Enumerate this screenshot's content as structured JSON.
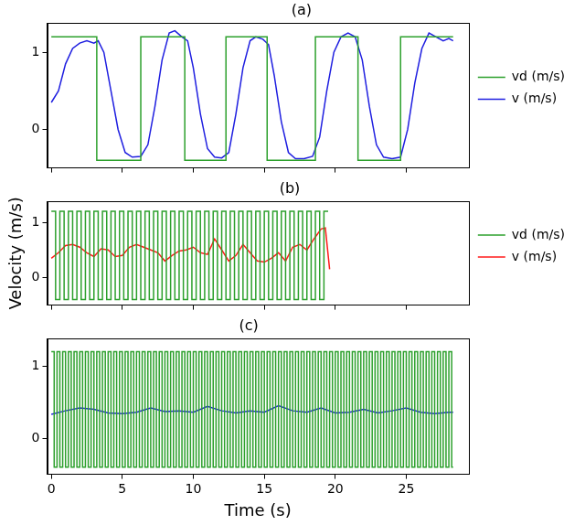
{
  "chart_data": [
    {
      "type": "line",
      "title": "(a)",
      "xlim": [
        -0.3,
        29.4
      ],
      "xticks": [
        0,
        5,
        10,
        15,
        20,
        25
      ],
      "ylim": [
        -0.5,
        1.38
      ],
      "yticks": [
        0,
        1
      ],
      "grid": false,
      "legend": "right",
      "tick_labels": "y",
      "series": [
        {
          "name": "vd (m/s)",
          "color": "#2ca02c",
          "line_style": "steps",
          "x": [
            0,
            3.2,
            6.3,
            9.4,
            12.3,
            15.2,
            18.6,
            21.6,
            24.6,
            28.3
          ],
          "values": [
            1.2,
            -0.4,
            1.2,
            -0.4,
            1.2,
            -0.4,
            1.2,
            -0.4,
            1.2,
            1.2
          ]
        },
        {
          "name": "v (m/s)",
          "color": "#1f1fe0",
          "line_style": "solid",
          "x": [
            0,
            0.5,
            1,
            1.5,
            2,
            2.5,
            3,
            3.3,
            3.7,
            4.2,
            4.7,
            5.2,
            5.7,
            6.3,
            6.8,
            7.3,
            7.8,
            8.3,
            8.7,
            9.2,
            9.6,
            10,
            10.5,
            11,
            11.5,
            12,
            12.5,
            13,
            13.5,
            14,
            14.4,
            14.9,
            15.3,
            15.7,
            16.2,
            16.7,
            17.2,
            17.8,
            18.4,
            18.9,
            19.4,
            19.9,
            20.4,
            20.9,
            21.4,
            21.9,
            22.4,
            22.9,
            23.4,
            24,
            24.6,
            25.1,
            25.6,
            26.1,
            26.6,
            27.1,
            27.6,
            28,
            28.3
          ],
          "values": [
            0.35,
            0.5,
            0.85,
            1.05,
            1.12,
            1.15,
            1.12,
            1.15,
            1.0,
            0.5,
            0.0,
            -0.3,
            -0.36,
            -0.35,
            -0.2,
            0.3,
            0.9,
            1.25,
            1.28,
            1.2,
            1.15,
            0.8,
            0.2,
            -0.25,
            -0.36,
            -0.37,
            -0.3,
            0.2,
            0.8,
            1.15,
            1.2,
            1.17,
            1.1,
            0.7,
            0.1,
            -0.3,
            -0.38,
            -0.38,
            -0.35,
            -0.1,
            0.5,
            1.0,
            1.2,
            1.25,
            1.2,
            0.9,
            0.3,
            -0.2,
            -0.36,
            -0.38,
            -0.36,
            0.0,
            0.6,
            1.05,
            1.25,
            1.2,
            1.15,
            1.18,
            1.15
          ]
        }
      ]
    },
    {
      "type": "line",
      "title": "(b)",
      "ylabel": "Velocity (m/s)",
      "xlim": [
        -0.3,
        29.4
      ],
      "xticks": [
        0,
        5,
        10,
        15,
        20,
        25
      ],
      "ylim": [
        -0.5,
        1.38
      ],
      "yticks": [
        0,
        1
      ],
      "grid": false,
      "legend": "right",
      "tick_labels": "y",
      "series": [
        {
          "name": "vd (m/s)",
          "color": "#2ca02c",
          "line_style": "steps",
          "x": [
            0,
            0.3,
            0.6,
            0.9,
            1.2,
            1.5,
            1.8,
            2.1,
            2.4,
            2.7,
            3,
            3.3,
            3.6,
            3.9,
            4.2,
            4.5,
            4.8,
            5.1,
            5.4,
            5.7,
            6,
            6.3,
            6.6,
            6.9,
            7.2,
            7.5,
            7.8,
            8.1,
            8.4,
            8.7,
            9,
            9.3,
            9.6,
            9.9,
            10.2,
            10.5,
            10.8,
            11.1,
            11.4,
            11.7,
            12,
            12.3,
            12.6,
            12.9,
            13.2,
            13.5,
            13.8,
            14.1,
            14.4,
            14.7,
            15,
            15.3,
            15.6,
            15.9,
            16.2,
            16.5,
            16.8,
            17.1,
            17.4,
            17.7,
            18,
            18.3,
            18.6,
            18.9,
            19.2,
            19.5
          ],
          "values": [
            1.2,
            -0.4,
            1.2,
            -0.4,
            1.2,
            -0.4,
            1.2,
            -0.4,
            1.2,
            -0.4,
            1.2,
            -0.4,
            1.2,
            -0.4,
            1.2,
            -0.4,
            1.2,
            -0.4,
            1.2,
            -0.4,
            1.2,
            -0.4,
            1.2,
            -0.4,
            1.2,
            -0.4,
            1.2,
            -0.4,
            1.2,
            -0.4,
            1.2,
            -0.4,
            1.2,
            -0.4,
            1.2,
            -0.4,
            1.2,
            -0.4,
            1.2,
            -0.4,
            1.2,
            -0.4,
            1.2,
            -0.4,
            1.2,
            -0.4,
            1.2,
            -0.4,
            1.2,
            -0.4,
            1.2,
            -0.4,
            1.2,
            -0.4,
            1.2,
            -0.4,
            1.2,
            -0.4,
            1.2,
            -0.4,
            1.2,
            -0.4,
            1.2,
            -0.4,
            1.2,
            1.2
          ]
        },
        {
          "name": "v (m/s)",
          "color": "#ff1a1a",
          "line_style": "solid",
          "x": [
            0,
            0.5,
            1,
            1.5,
            2,
            2.5,
            3,
            3.5,
            4,
            4.5,
            5,
            5.5,
            6,
            6.5,
            7,
            7.5,
            8,
            8.5,
            9,
            9.5,
            10,
            10.5,
            11,
            11.5,
            12,
            12.5,
            13,
            13.5,
            14,
            14.5,
            15,
            15.5,
            16,
            16.5,
            17,
            17.5,
            18,
            18.5,
            19,
            19.3,
            19.6
          ],
          "values": [
            0.35,
            0.45,
            0.58,
            0.6,
            0.55,
            0.45,
            0.38,
            0.52,
            0.5,
            0.38,
            0.4,
            0.55,
            0.6,
            0.55,
            0.5,
            0.45,
            0.3,
            0.4,
            0.48,
            0.5,
            0.55,
            0.45,
            0.42,
            0.7,
            0.5,
            0.3,
            0.4,
            0.6,
            0.45,
            0.3,
            0.28,
            0.35,
            0.45,
            0.3,
            0.55,
            0.6,
            0.5,
            0.7,
            0.88,
            0.9,
            0.15
          ]
        }
      ]
    },
    {
      "type": "line",
      "title": "(c)",
      "xlabel": "Time (s)",
      "xlim": [
        -0.3,
        29.4
      ],
      "xticks": [
        0,
        5,
        10,
        15,
        20,
        25
      ],
      "ylim": [
        -0.5,
        1.38
      ],
      "yticks": [
        0,
        1
      ],
      "grid": false,
      "series": [
        {
          "name": "vd (m/s)",
          "color": "#2ca02c",
          "line_style": "steps",
          "x": [
            0,
            0.2,
            0.4,
            0.6,
            0.8,
            1,
            1.2,
            1.4,
            1.6,
            1.8,
            2,
            2.2,
            2.4,
            2.6,
            2.8,
            3,
            3.2,
            3.4,
            3.6,
            3.8,
            4,
            4.2,
            4.4,
            4.6,
            4.8,
            5,
            5.2,
            5.4,
            5.6,
            5.8,
            6,
            6.2,
            6.4,
            6.6,
            6.8,
            7,
            7.2,
            7.4,
            7.6,
            7.8,
            8,
            8.2,
            8.4,
            8.6,
            8.8,
            9,
            9.2,
            9.4,
            9.6,
            9.8,
            10,
            10.2,
            10.4,
            10.6,
            10.8,
            11,
            11.2,
            11.4,
            11.6,
            11.8,
            12,
            12.2,
            12.4,
            12.6,
            12.8,
            13,
            13.2,
            13.4,
            13.6,
            13.8,
            14,
            14.2,
            14.4,
            14.6,
            14.8,
            15,
            15.2,
            15.4,
            15.6,
            15.8,
            16,
            16.2,
            16.4,
            16.6,
            16.8,
            17,
            17.2,
            17.4,
            17.6,
            17.8,
            18,
            18.2,
            18.4,
            18.6,
            18.8,
            19,
            19.2,
            19.4,
            19.6,
            19.8,
            20,
            20.2,
            20.4,
            20.6,
            20.8,
            21,
            21.2,
            21.4,
            21.6,
            21.8,
            22,
            22.2,
            22.4,
            22.6,
            22.8,
            23,
            23.2,
            23.4,
            23.6,
            23.8,
            24,
            24.2,
            24.4,
            24.6,
            24.8,
            25,
            25.2,
            25.4,
            25.6,
            25.8,
            26,
            26.2,
            26.4,
            26.6,
            26.8,
            27,
            27.2,
            27.4,
            27.6,
            27.8,
            28,
            28.2,
            28.3
          ],
          "values": [
            1.2,
            -0.4,
            1.2,
            -0.4,
            1.2,
            -0.4,
            1.2,
            -0.4,
            1.2,
            -0.4,
            1.2,
            -0.4,
            1.2,
            -0.4,
            1.2,
            -0.4,
            1.2,
            -0.4,
            1.2,
            -0.4,
            1.2,
            -0.4,
            1.2,
            -0.4,
            1.2,
            -0.4,
            1.2,
            -0.4,
            1.2,
            -0.4,
            1.2,
            -0.4,
            1.2,
            -0.4,
            1.2,
            -0.4,
            1.2,
            -0.4,
            1.2,
            -0.4,
            1.2,
            -0.4,
            1.2,
            -0.4,
            1.2,
            -0.4,
            1.2,
            -0.4,
            1.2,
            -0.4,
            1.2,
            -0.4,
            1.2,
            -0.4,
            1.2,
            -0.4,
            1.2,
            -0.4,
            1.2,
            -0.4,
            1.2,
            -0.4,
            1.2,
            -0.4,
            1.2,
            -0.4,
            1.2,
            -0.4,
            1.2,
            -0.4,
            1.2,
            -0.4,
            1.2,
            -0.4,
            1.2,
            -0.4,
            1.2,
            -0.4,
            1.2,
            -0.4,
            1.2,
            -0.4,
            1.2,
            -0.4,
            1.2,
            -0.4,
            1.2,
            -0.4,
            1.2,
            -0.4,
            1.2,
            -0.4,
            1.2,
            -0.4,
            1.2,
            -0.4,
            1.2,
            -0.4,
            1.2,
            -0.4,
            1.2,
            -0.4,
            1.2,
            -0.4,
            1.2,
            -0.4,
            1.2,
            -0.4,
            1.2,
            -0.4,
            1.2,
            -0.4,
            1.2,
            -0.4,
            1.2,
            -0.4,
            1.2,
            -0.4,
            1.2,
            -0.4,
            1.2,
            -0.4,
            1.2,
            -0.4,
            1.2,
            -0.4,
            1.2,
            -0.4,
            1.2,
            -0.4,
            1.2,
            -0.4,
            1.2,
            -0.4,
            1.2,
            -0.4,
            1.2,
            -0.4,
            1.2,
            -0.4,
            1.2,
            -0.4,
            -0.4
          ]
        },
        {
          "name": "v (m/s)",
          "color": "#1f1fe0",
          "line_style": "solid",
          "x": [
            0,
            1,
            2,
            3,
            4,
            5,
            6,
            7,
            8,
            9,
            10,
            11,
            12,
            13,
            14,
            15,
            16,
            17,
            18,
            19,
            20,
            21,
            22,
            23,
            24,
            25,
            26,
            27,
            28,
            28.3
          ],
          "values": [
            0.33,
            0.38,
            0.42,
            0.4,
            0.35,
            0.34,
            0.36,
            0.42,
            0.37,
            0.38,
            0.36,
            0.44,
            0.38,
            0.35,
            0.38,
            0.36,
            0.45,
            0.38,
            0.36,
            0.42,
            0.35,
            0.36,
            0.4,
            0.35,
            0.38,
            0.42,
            0.36,
            0.34,
            0.36,
            0.36
          ]
        }
      ]
    }
  ]
}
